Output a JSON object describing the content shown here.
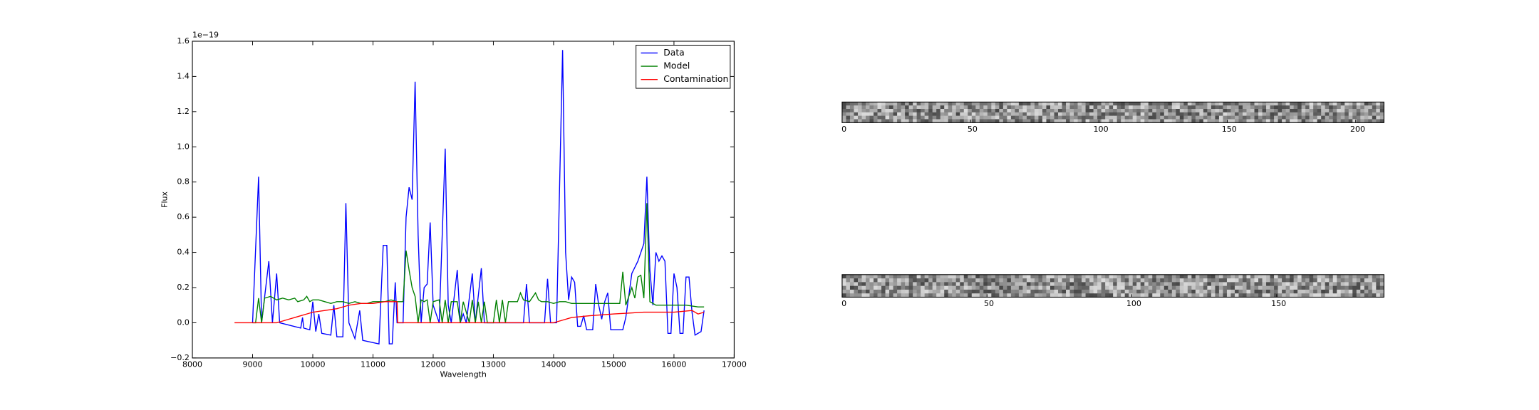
{
  "chart_data": [
    {
      "type": "line",
      "xlabel": "Wavelength",
      "ylabel": "Flux",
      "y_offset_label": "1e−19",
      "xlim": [
        8000,
        17000
      ],
      "xticks": [
        8000,
        9000,
        10000,
        11000,
        12000,
        13000,
        14000,
        15000,
        16000,
        17000
      ],
      "ylim": [
        -0.2,
        1.6
      ],
      "yticks": [
        {
          "value": -0.2,
          "label": "−0.2"
        },
        {
          "value": 0,
          "label": "0.0"
        },
        0.2,
        0.4,
        0.6,
        0.8,
        {
          "value": 1,
          "label": "1.0"
        },
        1.2,
        1.4,
        1.6
      ],
      "legend": "upper right",
      "series": [
        {
          "name": "Data",
          "color": "#0000ff",
          "x": [
            9000,
            9100,
            9150,
            9270,
            9330,
            9400,
            9450,
            9800,
            9830,
            9850,
            9950,
            10000,
            10050,
            10100,
            10150,
            10300,
            10350,
            10400,
            10500,
            10550,
            10600,
            10700,
            10780,
            10830,
            11100,
            11170,
            11230,
            11270,
            11320,
            11370,
            11400,
            11500,
            11550,
            11600,
            11650,
            11700,
            11750,
            11800,
            11850,
            11900,
            11950,
            12000,
            12100,
            12200,
            12250,
            12300,
            12400,
            12450,
            12500,
            12550,
            12650,
            12700,
            12800,
            12850,
            13000,
            13500,
            13550,
            13600,
            13850,
            13900,
            13950,
            14050,
            14150,
            14200,
            14250,
            14300,
            14350,
            14400,
            14450,
            14500,
            14550,
            14650,
            14700,
            14750,
            14800,
            14850,
            14900,
            14950,
            15150,
            15200,
            15300,
            15400,
            15500,
            15550,
            15600,
            15650,
            15700,
            15750,
            15800,
            15850,
            15900,
            15950,
            16000,
            16050,
            16100,
            16150,
            16200,
            16250,
            16300,
            16350,
            16450,
            16500
          ],
          "values": [
            0,
            0.83,
            0,
            0.35,
            0,
            0.28,
            0,
            -0.03,
            0.03,
            -0.03,
            -0.04,
            0.12,
            -0.05,
            0.05,
            -0.06,
            -0.07,
            0.1,
            -0.08,
            -0.08,
            0.68,
            0,
            -0.09,
            0.07,
            -0.1,
            -0.12,
            0.44,
            0.44,
            -0.12,
            -0.12,
            0.23,
            0,
            0,
            0.6,
            0.77,
            0.7,
            1.37,
            0.5,
            0,
            0.2,
            0.22,
            0.57,
            0.1,
            0,
            0.99,
            0.1,
            0,
            0.3,
            0,
            0.05,
            0,
            0.28,
            0,
            0.31,
            0,
            0,
            0,
            0.22,
            0,
            0,
            0.25,
            0,
            0,
            1.55,
            0.4,
            0.13,
            0.26,
            0.23,
            -0.02,
            -0.02,
            0.04,
            -0.04,
            -0.04,
            0.22,
            0.1,
            0.02,
            0.12,
            0.17,
            -0.04,
            -0.04,
            0.03,
            0.28,
            0.35,
            0.45,
            0.83,
            0.3,
            0.1,
            0.4,
            0.35,
            0.38,
            0.35,
            -0.06,
            -0.06,
            0.28,
            0.2,
            -0.06,
            -0.06,
            0.26,
            0.26,
            0.06,
            -0.07,
            -0.05,
            0.07
          ]
        },
        {
          "name": "Model",
          "color": "#008000",
          "x": [
            9000,
            9050,
            9100,
            9150,
            9200,
            9300,
            9400,
            9500,
            9600,
            9700,
            9750,
            9850,
            9900,
            9950,
            10000,
            10100,
            10200,
            10300,
            10400,
            10500,
            10600,
            10700,
            10800,
            10900,
            11000,
            11100,
            11200,
            11300,
            11400,
            11450,
            11500,
            11550,
            11600,
            11650,
            11700,
            11750,
            11800,
            11850,
            11900,
            11950,
            12000,
            12100,
            12150,
            12200,
            12250,
            12300,
            12400,
            12450,
            12500,
            12600,
            12650,
            12700,
            12750,
            12800,
            12850,
            12900,
            13000,
            13050,
            13100,
            13150,
            13200,
            13250,
            13300,
            13400,
            13450,
            13500,
            13600,
            13700,
            13750,
            13800,
            13900,
            14000,
            14100,
            14200,
            14300,
            14400,
            14500,
            14600,
            14700,
            14800,
            14900,
            15000,
            15100,
            15150,
            15200,
            15300,
            15350,
            15400,
            15450,
            15500,
            15550,
            15600,
            15700,
            15800,
            16000,
            16200,
            16400,
            16500
          ],
          "values": [
            0,
            0,
            0.14,
            0,
            0.14,
            0.15,
            0.13,
            0.14,
            0.13,
            0.14,
            0.12,
            0.13,
            0.15,
            0.12,
            0.13,
            0.13,
            0.12,
            0.11,
            0.12,
            0.12,
            0.11,
            0.12,
            0.11,
            0.11,
            0.12,
            0.12,
            0.12,
            0.13,
            0.12,
            0.12,
            0.12,
            0.41,
            0.3,
            0.2,
            0.15,
            0,
            0.13,
            0.12,
            0.13,
            0,
            0.12,
            0.13,
            0,
            0.13,
            0,
            0.12,
            0.12,
            0,
            0.12,
            0,
            0.13,
            0,
            0.12,
            0,
            0.12,
            0,
            0,
            0.13,
            0,
            0.13,
            0,
            0.12,
            0.12,
            0.12,
            0.17,
            0.13,
            0.12,
            0.17,
            0.13,
            0.12,
            0.12,
            0.11,
            0.12,
            0.12,
            0.11,
            0.11,
            0.11,
            0.11,
            0.11,
            0.11,
            0.11,
            0.11,
            0.11,
            0.29,
            0.1,
            0.2,
            0.14,
            0.26,
            0.27,
            0.14,
            0.68,
            0.12,
            0.1,
            0.1,
            0.1,
            0.1,
            0.09,
            0.09
          ]
        },
        {
          "name": "Contamination",
          "color": "#ff0000",
          "x": [
            8700,
            9400,
            9500,
            9600,
            9700,
            9800,
            9900,
            10000,
            10200,
            10400,
            10600,
            10800,
            11000,
            11200,
            11400,
            11410,
            12000,
            13000,
            14000,
            14100,
            14300,
            14600,
            15000,
            15500,
            16000,
            16300,
            16400,
            16500
          ],
          "values": [
            0,
            0,
            0.01,
            0.02,
            0.03,
            0.04,
            0.05,
            0.06,
            0.07,
            0.08,
            0.1,
            0.11,
            0.11,
            0.12,
            0.12,
            0,
            0,
            0,
            0,
            0.01,
            0.03,
            0.04,
            0.05,
            0.06,
            0.06,
            0.07,
            0.05,
            0.06
          ]
        }
      ]
    },
    {
      "type": "image",
      "xlim": [
        0,
        211
      ],
      "xticks": [
        0,
        50,
        100,
        150,
        200
      ]
    },
    {
      "type": "image",
      "xlim": [
        0,
        187
      ],
      "xticks": [
        0,
        50,
        100,
        150
      ]
    }
  ]
}
